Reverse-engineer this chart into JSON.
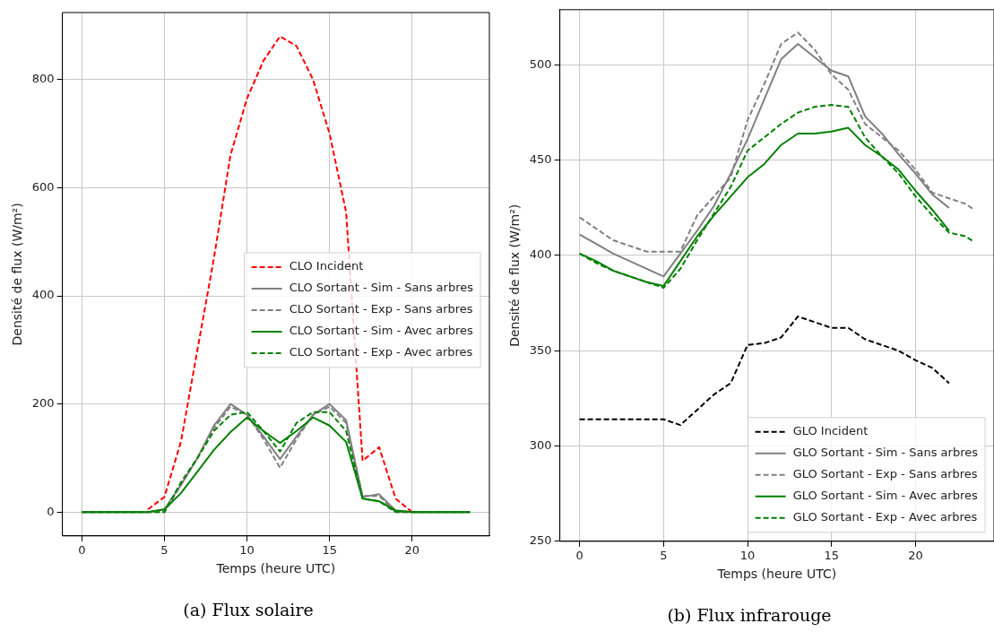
{
  "chart_data": [
    {
      "type": "line",
      "title": "(a) Flux solaire",
      "xlabel": "Temps (heure UTC)",
      "ylabel": "Densité de flux (W/m²)",
      "xlim": [
        -1.175,
        24.675
      ],
      "xticks": [
        0,
        5,
        10,
        15,
        20
      ],
      "ylim": [
        -44,
        924
      ],
      "yticks": [
        0,
        200,
        400,
        600,
        800
      ],
      "grid": true,
      "legend": "center right",
      "marker": "none",
      "series": [
        {
          "name": "CLO Incident",
          "color": "#ff0000",
          "line_style": "dashed",
          "x": [
            4,
            5,
            6,
            7,
            8,
            9,
            10,
            11,
            12,
            13,
            14,
            15,
            16,
            17,
            18,
            19,
            20
          ],
          "values": [
            5,
            28,
            130,
            300,
            470,
            660,
            765,
            835,
            880,
            862,
            800,
            700,
            555,
            95,
            120,
            25,
            0
          ]
        },
        {
          "name": "CLO Sortant - Sim - Sans arbres",
          "color": "#808080",
          "line_style": "solid",
          "x": [
            0,
            1,
            2,
            3,
            4,
            5,
            6,
            7,
            8,
            9,
            10,
            11,
            12,
            13,
            14,
            15,
            16,
            17,
            18,
            19,
            20,
            21,
            22,
            23,
            23.5
          ],
          "values": [
            0,
            0,
            0,
            0,
            0,
            5,
            50,
            100,
            160,
            200,
            180,
            140,
            98,
            140,
            180,
            200,
            170,
            28,
            33,
            3,
            0,
            0,
            0,
            0,
            0
          ]
        },
        {
          "name": "CLO Sortant - Exp - Sans arbres",
          "color": "#808080",
          "line_style": "dashed",
          "x": [
            0,
            1,
            2,
            3,
            4,
            5,
            6,
            7,
            8,
            9,
            10,
            11,
            12,
            13,
            14,
            15,
            16,
            17,
            18,
            19,
            20,
            21,
            22,
            23,
            23.5
          ],
          "values": [
            0,
            0,
            0,
            0,
            0,
            0,
            50,
            100,
            155,
            195,
            180,
            135,
            82,
            135,
            180,
            195,
            165,
            30,
            30,
            0,
            0,
            0,
            0,
            0,
            0
          ]
        },
        {
          "name": "CLO Sortant - Sim - Avec arbres",
          "color": "#008000",
          "line_style": "solid",
          "x": [
            0,
            1,
            2,
            3,
            4,
            5,
            6,
            7,
            8,
            9,
            10,
            11,
            12,
            13,
            14,
            15,
            16,
            17,
            18,
            19,
            20,
            21,
            22,
            23,
            23.5
          ],
          "values": [
            0,
            0,
            0,
            0,
            0,
            5,
            35,
            75,
            115,
            148,
            175,
            150,
            128,
            150,
            175,
            160,
            130,
            25,
            20,
            3,
            0,
            0,
            0,
            0,
            0
          ]
        },
        {
          "name": "CLO Sortant - Exp - Avec arbres",
          "color": "#008000",
          "line_style": "dashed",
          "x": [
            0,
            1,
            2,
            3,
            4,
            5,
            6,
            7,
            8,
            9,
            10,
            11,
            12,
            13,
            14,
            15,
            16,
            17,
            18,
            19,
            20,
            21,
            22,
            23,
            23.5
          ],
          "values": [
            0,
            0,
            0,
            0,
            0,
            0,
            55,
            100,
            150,
            180,
            185,
            150,
            112,
            165,
            185,
            185,
            150,
            25,
            20,
            0,
            0,
            0,
            0,
            0,
            0
          ]
        }
      ]
    },
    {
      "type": "line",
      "title": "(b) Flux infrarouge",
      "xlabel": "Temps (heure UTC)",
      "ylabel": "Densité de flux (W/m²)",
      "xlim": [
        -1.175,
        24.675
      ],
      "xticks": [
        0,
        5,
        10,
        15,
        20
      ],
      "ylim": [
        250,
        529
      ],
      "yticks": [
        250,
        300,
        350,
        400,
        450,
        500
      ],
      "grid": true,
      "legend": "bottom right",
      "marker": "none",
      "series": [
        {
          "name": "GLO Incident",
          "color": "#000000",
          "line_style": "dashed",
          "x": [
            0,
            1,
            2,
            3,
            4,
            5,
            6,
            7,
            8,
            9,
            10,
            11,
            12,
            13,
            14,
            15,
            16,
            17,
            18,
            19,
            20,
            21,
            22
          ],
          "values": [
            314,
            314,
            314,
            314,
            314,
            314,
            311,
            319,
            327,
            333,
            353,
            354,
            357,
            368,
            365,
            362,
            362,
            356,
            353,
            350,
            345,
            341,
            333
          ]
        },
        {
          "name": "GLO Sortant - Sim - Sans arbres",
          "color": "#808080",
          "line_style": "solid",
          "x": [
            0,
            1,
            2,
            3,
            4,
            5,
            6,
            7,
            8,
            9,
            10,
            11,
            12,
            13,
            14,
            15,
            16,
            17,
            18,
            19,
            20,
            21,
            22
          ],
          "values": [
            411,
            406,
            401,
            397,
            393,
            389,
            401,
            413,
            426,
            443,
            461,
            482,
            503,
            511,
            504,
            497,
            494,
            473,
            464,
            453,
            443,
            432,
            425
          ]
        },
        {
          "name": "GLO Sortant - Exp - Sans arbres",
          "color": "#808080",
          "line_style": "dashed",
          "x": [
            0,
            1,
            2,
            3,
            4,
            5,
            6,
            7,
            8,
            9,
            10,
            11,
            12,
            13,
            14,
            15,
            16,
            17,
            18,
            19,
            20,
            21,
            22,
            23,
            23.5
          ],
          "values": [
            420,
            414,
            408,
            405,
            402,
            402,
            402,
            421,
            431,
            441,
            471,
            490,
            511,
            517,
            508,
            495,
            487,
            469,
            462,
            455,
            445,
            433,
            430,
            427,
            424
          ]
        },
        {
          "name": "GLO Sortant - Sim - Avec arbres",
          "color": "#008000",
          "line_style": "solid",
          "x": [
            0,
            1,
            2,
            3,
            4,
            5,
            6,
            7,
            8,
            9,
            10,
            11,
            12,
            13,
            14,
            15,
            16,
            17,
            18,
            19,
            20,
            21,
            22
          ],
          "values": [
            401,
            397,
            392,
            389,
            386,
            384,
            397,
            410,
            421,
            431,
            441,
            448,
            458,
            464,
            464,
            465,
            467,
            458,
            452,
            445,
            434,
            424,
            413
          ]
        },
        {
          "name": "GLO Sortant - Exp - Avec arbres",
          "color": "#008000",
          "line_style": "dashed",
          "x": [
            0,
            1,
            2,
            3,
            4,
            5,
            6,
            7,
            8,
            9,
            10,
            11,
            12,
            13,
            14,
            15,
            16,
            17,
            18,
            19,
            20,
            21,
            22,
            23,
            23.5
          ],
          "values": [
            401,
            396,
            392,
            389,
            386,
            383,
            393,
            408,
            422,
            436,
            455,
            462,
            469,
            475,
            478,
            479,
            478,
            462,
            452,
            443,
            431,
            421,
            412,
            410,
            407
          ]
        }
      ]
    }
  ]
}
